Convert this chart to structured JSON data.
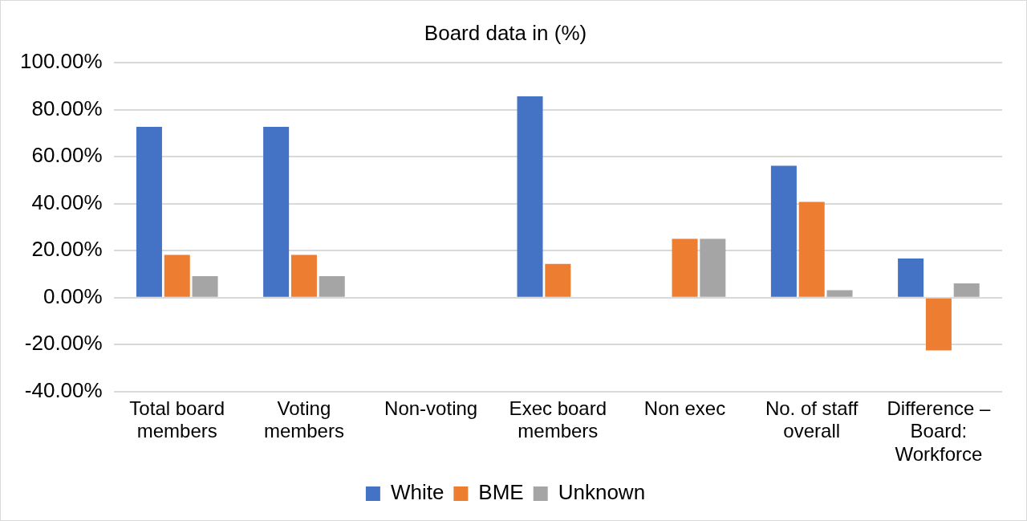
{
  "chart_data": {
    "type": "bar",
    "title": "Board data in (%)",
    "categories": [
      "Total board members",
      "Voting members",
      "Non-voting",
      "Exec board members",
      "Non exec",
      "No. of staff overall",
      "Difference – Board: Workforce"
    ],
    "series": [
      {
        "name": "White",
        "color": "#4472c4",
        "values": [
          72.7,
          72.7,
          0,
          85.7,
          0,
          56.1,
          16.6
        ]
      },
      {
        "name": "BME",
        "color": "#ed7d31",
        "values": [
          18.2,
          18.2,
          0,
          14.3,
          25.0,
          40.7,
          -22.5
        ]
      },
      {
        "name": "Unknown",
        "color": "#a5a5a5",
        "values": [
          9.1,
          9.1,
          0,
          0,
          25.0,
          3.1,
          6.0
        ]
      }
    ],
    "ylim": [
      -40,
      100
    ],
    "yticks": [
      {
        "value": -40,
        "label": "-40.00%"
      },
      {
        "value": -20,
        "label": "-20.00%"
      },
      {
        "value": 0,
        "label": "0.00%"
      },
      {
        "value": 20,
        "label": "20.00%"
      },
      {
        "value": 40,
        "label": "40.00%"
      },
      {
        "value": 60,
        "label": "60.00%"
      },
      {
        "value": 80,
        "label": "80.00%"
      },
      {
        "value": 100,
        "label": "100.00%"
      }
    ],
    "grid": "y",
    "legend": "bottom"
  }
}
